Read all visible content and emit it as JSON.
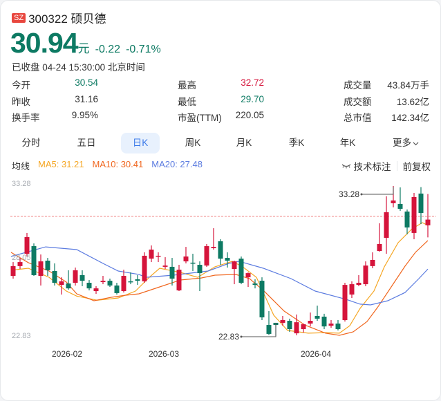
{
  "header": {
    "market_badge": "SZ",
    "title": "300322 硕贝德",
    "price": "30.94",
    "unit": "元",
    "change": "-0.22",
    "change_pct": "-0.71%",
    "status": "已收盘 04-24 15:30:00 北京时间"
  },
  "stats": [
    {
      "label": "今开",
      "value": "30.54",
      "color": "#0d7a63"
    },
    {
      "label": "昨收",
      "value": "31.16",
      "color": "#333333"
    },
    {
      "label": "换手率",
      "value": "9.95%",
      "color": "#333333"
    },
    {
      "label": "最高",
      "value": "32.72",
      "color": "#d5143b"
    },
    {
      "label": "最低",
      "value": "29.70",
      "color": "#0d7a63"
    },
    {
      "label": "市盈(TTM)",
      "value": "220.05",
      "color": "#333333"
    },
    {
      "label": "成交量",
      "value": "43.84万手",
      "color": "#333333"
    },
    {
      "label": "成交额",
      "value": "13.62亿",
      "color": "#333333"
    },
    {
      "label": "总市值",
      "value": "142.34亿",
      "color": "#333333"
    }
  ],
  "tabs": [
    {
      "label": "分时"
    },
    {
      "label": "五日"
    },
    {
      "label": "日K",
      "active": true
    },
    {
      "label": "周K"
    },
    {
      "label": "月K"
    },
    {
      "label": "季K"
    },
    {
      "label": "年K"
    },
    {
      "label": "更多"
    }
  ],
  "ma_bar": {
    "label": "均线",
    "ma5": "MA5: 31.21",
    "ma10": "MA10: 30.41",
    "ma20": "MA20: 27.48",
    "tech_label": "技术标注",
    "adjust_label": "前复权"
  },
  "colors": {
    "up": "#d5143b",
    "down": "#0d7a63",
    "ma5": "#f5a623",
    "ma10": "#f0661e",
    "ma20": "#5b7be0",
    "ref_line": "#f08a8a",
    "tab_active_bg": "#e8f1fd",
    "tab_active_text": "#3d7bea"
  },
  "chart_data": {
    "type": "candlestick",
    "title": "300322 硕贝德 日K",
    "y_ticks": [
      "33.28",
      "28.05",
      "22.83"
    ],
    "ylim": [
      22.83,
      33.28
    ],
    "x_ticks": [
      {
        "label": "2026-02",
        "index": 8
      },
      {
        "label": "2026-03",
        "index": 22
      },
      {
        "label": "2026-04",
        "index": 44
      }
    ],
    "prev_close": 31.16,
    "max_marker": {
      "label": "33.28",
      "index": 55
    },
    "min_marker": {
      "label": "22.83",
      "index": 38
    },
    "ohlc": [
      [
        27.02,
        27.7,
        27.98,
        26.83
      ],
      [
        27.7,
        27.98,
        28.27,
        27.5
      ],
      [
        28.56,
        29.72,
        30.01,
        28.37
      ],
      [
        29.09,
        27.07,
        29.28,
        27.02
      ],
      [
        27.02,
        28.03,
        28.51,
        26.35
      ],
      [
        28.08,
        27.41,
        28.27,
        27.02
      ],
      [
        27.36,
        26.54,
        27.89,
        26.35
      ],
      [
        26.39,
        26.64,
        26.92,
        25.72
      ],
      [
        26.49,
        26.15,
        27.41,
        26.06
      ],
      [
        26.54,
        27.41,
        27.6,
        26.35
      ],
      [
        27.07,
        26.68,
        27.41,
        26.3
      ],
      [
        26.54,
        26.15,
        26.73,
        26.01
      ],
      [
        25.96,
        26.15,
        26.3,
        25.77
      ],
      [
        26.59,
        26.68,
        27.02,
        26.44
      ],
      [
        26.68,
        26.35,
        26.83,
        26.25
      ],
      [
        26.35,
        25.82,
        26.54,
        25.72
      ],
      [
        25.96,
        27.02,
        27.45,
        25.86
      ],
      [
        26.64,
        26.59,
        27.26,
        26.44
      ],
      [
        26.78,
        26.68,
        27.07,
        26.39
      ],
      [
        26.64,
        28.42,
        28.66,
        26.54
      ],
      [
        28.22,
        28.85,
        29.14,
        27.98
      ],
      [
        28.37,
        28.42,
        28.66,
        27.98
      ],
      [
        27.65,
        27.74,
        28.32,
        27.5
      ],
      [
        27.65,
        26.83,
        28.27,
        26.35
      ],
      [
        26.01,
        27.45,
        27.79,
        25.96
      ],
      [
        28.03,
        28.37,
        29.04,
        27.89
      ],
      [
        27.94,
        27.89,
        28.56,
        27.36
      ],
      [
        27.79,
        27.21,
        28.03,
        25.96
      ],
      [
        27.74,
        29.09,
        29.24,
        27.65
      ],
      [
        28.95,
        29.04,
        30.34,
        28.85
      ],
      [
        29.43,
        28.22,
        29.57,
        27.79
      ],
      [
        28.27,
        28.08,
        28.66,
        27.6
      ],
      [
        27.5,
        28.03,
        28.08,
        26.44
      ],
      [
        28.22,
        26.54,
        28.37,
        26.44
      ],
      [
        26.92,
        27.21,
        27.26,
        26.25
      ],
      [
        26.49,
        26.39,
        26.78,
        26.15
      ],
      [
        26.68,
        24.13,
        26.92,
        23.94
      ],
      [
        23.6,
        22.98,
        24.57,
        22.9
      ],
      [
        23.75,
        23.6,
        23.75,
        22.83
      ],
      [
        23.75,
        23.94,
        24.23,
        23.55
      ],
      [
        23.89,
        23.31,
        24.04,
        23.12
      ],
      [
        23.02,
        23.79,
        24.33,
        22.88
      ],
      [
        23.31,
        23.65,
        23.7,
        23.07
      ],
      [
        23.7,
        23.89,
        24.47,
        23.5
      ],
      [
        24.23,
        24.04,
        24.95,
        23.89
      ],
      [
        24.18,
        23.5,
        24.38,
        23.31
      ],
      [
        23.55,
        23.7,
        23.94,
        23.41
      ],
      [
        23.7,
        23.31,
        23.94,
        23.22
      ],
      [
        23.94,
        26.39,
        26.54,
        23.84
      ],
      [
        25.72,
        26.44,
        26.64,
        25.48
      ],
      [
        26.39,
        26.54,
        27.07,
        26.3
      ],
      [
        26.44,
        27.74,
        28.03,
        26.3
      ],
      [
        27.7,
        28.13,
        28.66,
        27.55
      ],
      [
        28.75,
        29.24,
        30.68,
        28.71
      ],
      [
        29.67,
        31.45,
        32.56,
        28.56
      ],
      [
        32.08,
        32.27,
        33.28,
        31.79
      ],
      [
        32.03,
        31.69,
        33.18,
        31.55
      ],
      [
        31.5,
        30.39,
        31.64,
        29.91
      ],
      [
        30.01,
        32.51,
        32.8,
        29.57
      ],
      [
        32.75,
        31.4,
        33.2,
        30.63
      ],
      [
        30.54,
        30.94,
        32.72,
        29.7
      ]
    ],
    "ohlc_fields": [
      "open",
      "close",
      "high",
      "low"
    ],
    "series": [
      {
        "name": "MA5",
        "points": [
          [
            -0.3,
            27.41
          ],
          [
            2.2,
            27.55
          ],
          [
            5.2,
            26.92
          ],
          [
            7.7,
            25.96
          ],
          [
            9.2,
            25.61
          ],
          [
            12.2,
            25.32
          ],
          [
            15.2,
            25.48
          ],
          [
            17.7,
            25.96
          ],
          [
            19.7,
            26.92
          ],
          [
            21.2,
            27.55
          ],
          [
            24.2,
            27.26
          ],
          [
            26.7,
            26.92
          ],
          [
            29.2,
            27.65
          ],
          [
            31.7,
            28.03
          ],
          [
            33.2,
            27.65
          ],
          [
            35.2,
            26.92
          ],
          [
            37.7,
            24.28
          ],
          [
            39.7,
            23.22
          ],
          [
            42.7,
            23.03
          ],
          [
            45.2,
            23.07
          ],
          [
            47.2,
            23.03
          ],
          [
            48.7,
            23.55
          ],
          [
            50.2,
            24.76
          ],
          [
            52.2,
            25.96
          ],
          [
            53.7,
            27.65
          ],
          [
            55.7,
            29.33
          ],
          [
            57.7,
            30.29
          ],
          [
            59.2,
            30.73
          ],
          [
            60.0,
            30.54
          ]
        ]
      },
      {
        "name": "MA10",
        "points": [
          [
            -0.3,
            28.66
          ],
          [
            2.2,
            27.94
          ],
          [
            5.2,
            27.36
          ],
          [
            7.7,
            26.59
          ],
          [
            9.2,
            25.77
          ],
          [
            11.7,
            25.29
          ],
          [
            14.2,
            25.53
          ],
          [
            16.2,
            25.67
          ],
          [
            18.2,
            25.77
          ],
          [
            21.2,
            26.25
          ],
          [
            24.2,
            26.73
          ],
          [
            27.2,
            26.87
          ],
          [
            29.2,
            27.07
          ],
          [
            32.2,
            27.12
          ],
          [
            34.2,
            26.83
          ],
          [
            36.2,
            26.01
          ],
          [
            39.2,
            24.57
          ],
          [
            42.2,
            23.6
          ],
          [
            45.2,
            23.03
          ],
          [
            47.2,
            22.88
          ],
          [
            49.2,
            23.12
          ],
          [
            51.2,
            23.84
          ],
          [
            52.7,
            24.81
          ],
          [
            54.7,
            26.25
          ],
          [
            56.7,
            27.7
          ],
          [
            58.2,
            28.66
          ],
          [
            60.0,
            29.48
          ]
        ]
      },
      {
        "name": "MA20",
        "points": [
          [
            -0.3,
            28.37
          ],
          [
            4.7,
            29.04
          ],
          [
            9.2,
            28.85
          ],
          [
            13.2,
            27.84
          ],
          [
            15.2,
            27.36
          ],
          [
            18.2,
            27.12
          ],
          [
            19.2,
            26.92
          ],
          [
            23.2,
            27.07
          ],
          [
            28.2,
            27.36
          ],
          [
            31.2,
            27.89
          ],
          [
            32.7,
            28.03
          ],
          [
            36.2,
            27.55
          ],
          [
            40.2,
            26.83
          ],
          [
            43.7,
            25.96
          ],
          [
            48.2,
            25.38
          ],
          [
            50.2,
            25.05
          ],
          [
            51.7,
            25.0
          ],
          [
            54.2,
            25.29
          ],
          [
            56.7,
            25.86
          ],
          [
            58.7,
            26.83
          ],
          [
            60.0,
            27.5
          ]
        ]
      }
    ]
  }
}
